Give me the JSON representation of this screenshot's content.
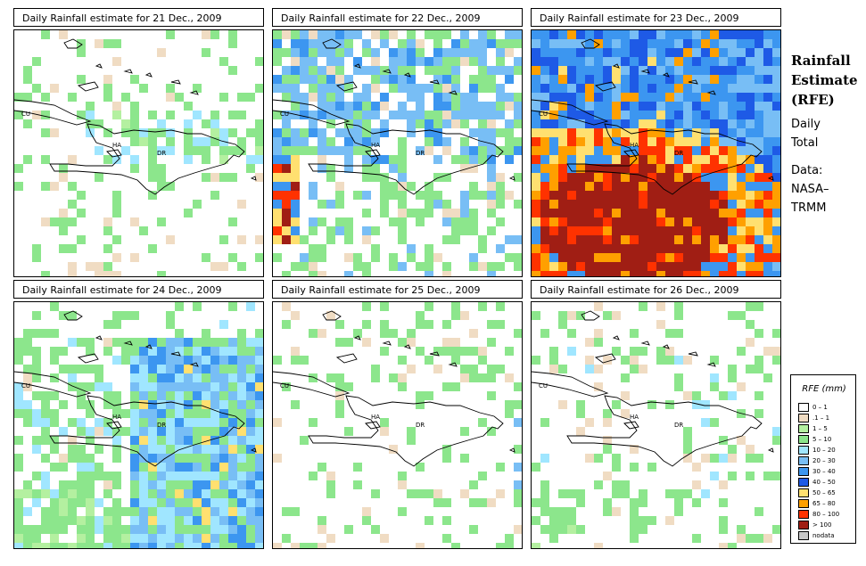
{
  "panels": [
    {
      "title": "Daily Rainfall estimate for  21 Dec., 2009"
    },
    {
      "title": "Daily Rainfall estimate for  22 Dec., 2009"
    },
    {
      "title": "Daily Rainfall estimate for  23 Dec., 2009"
    },
    {
      "title": "Daily Rainfall estimate for  24 Dec., 2009"
    },
    {
      "title": "Daily Rainfall estimate for  25 Dec., 2009"
    },
    {
      "title": "Daily Rainfall estimate for  26 Dec., 2009"
    }
  ],
  "map_labels": {
    "cu": "CU",
    "ha": "HA",
    "dr": "DR"
  },
  "side_text": {
    "title_line1": "Rainfall",
    "title_line2": "Estimate",
    "title_line3": "(RFE)",
    "line4": "Daily",
    "line5": "Total",
    "line6": "Data:",
    "line7": "NASA–",
    "line8": "TRMM"
  },
  "legend": {
    "title": "RFE (mm)",
    "items": [
      {
        "label": "0 – 1",
        "color": "#ffffff"
      },
      {
        "label": ".1 – 1",
        "color": "#f0dcc3"
      },
      {
        "label": "1 – 5",
        "color": "#b4f0a0"
      },
      {
        "label": "5 – 10",
        "color": "#8ce68c"
      },
      {
        "label": "10 – 20",
        "color": "#a0e6ff"
      },
      {
        "label": "20 – 30",
        "color": "#78bef5"
      },
      {
        "label": "30 – 40",
        "color": "#3c96f0"
      },
      {
        "label": "40 – 50",
        "color": "#1e5ae6"
      },
      {
        "label": "50 – 65",
        "color": "#ffe070"
      },
      {
        "label": "65 – 80",
        "color": "#ffa000"
      },
      {
        "label": "80 – 100",
        "color": "#ff3200"
      },
      {
        "label": "> 100",
        "color": "#a01e14"
      },
      {
        "label": "nodata",
        "color": "#c8c8c8"
      }
    ]
  }
}
